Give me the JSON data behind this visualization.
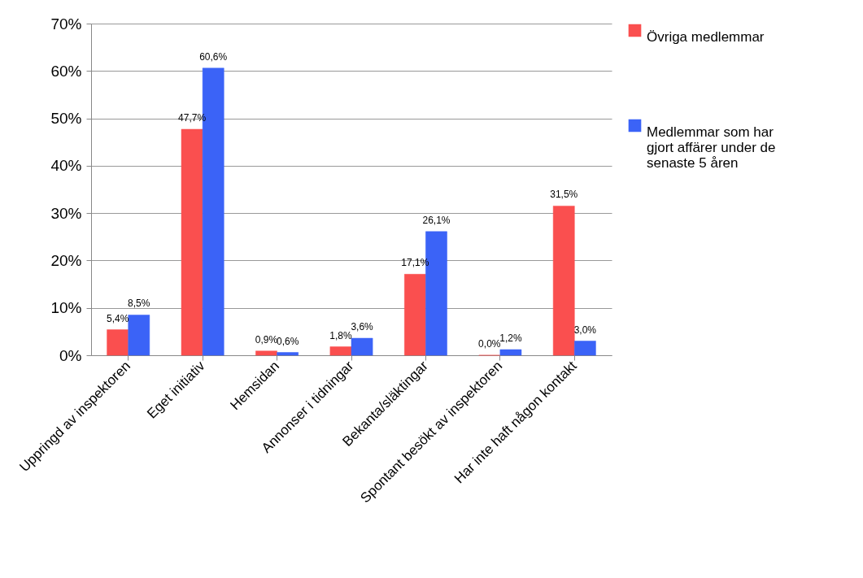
{
  "chart_data": {
    "type": "bar",
    "categories": [
      "Uppringd av inspektoren",
      "Eget initiativ",
      "Hemsidan",
      "Annonser i tidningar",
      "Bekanta/släktingar",
      "Spontant besökt av inspektoren",
      "Har inte haft någon kontakt"
    ],
    "series": [
      {
        "name": "Övriga medlemmar",
        "color": "#fa4f4f",
        "values": [
          5.4,
          47.7,
          0.9,
          1.8,
          17.1,
          0.0,
          31.5
        ],
        "value_labels": [
          "5,4%",
          "47,7%",
          "0,9%",
          "1,8%",
          "17,1%",
          "0,0%",
          "31,5%"
        ]
      },
      {
        "name": "Medlemmar som har gjort affärer under de senaste 5 åren",
        "color": "#3b63f7",
        "values": [
          8.5,
          60.6,
          0.6,
          3.6,
          26.1,
          1.2,
          3.0
        ],
        "value_labels": [
          "8,5%",
          "60,6%",
          "0,6%",
          "3,6%",
          "26,1%",
          "1,2%",
          "3,0%"
        ]
      }
    ],
    "ylim": [
      0,
      70
    ],
    "yticks": [
      {
        "value": 0,
        "label": "0%"
      },
      {
        "value": 10,
        "label": "10%"
      },
      {
        "value": 20,
        "label": "20%"
      },
      {
        "value": 30,
        "label": "30%"
      },
      {
        "value": 40,
        "label": "40%"
      },
      {
        "value": 50,
        "label": "50%"
      },
      {
        "value": 60,
        "label": "60%"
      },
      {
        "value": 70,
        "label": "70%"
      }
    ],
    "grid": "y",
    "legend": "top right"
  }
}
